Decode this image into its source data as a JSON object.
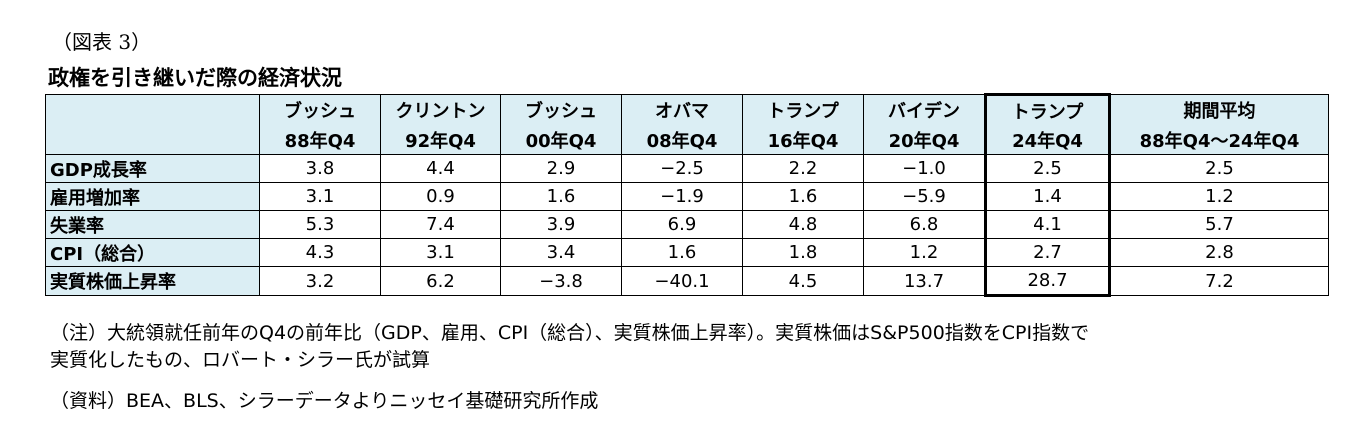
{
  "caption": "（図表 3）",
  "title": "政権を引き継いだ際の経済状況",
  "table": {
    "header": [
      [
        "ブッシュ",
        "88年Q4"
      ],
      [
        "クリントン",
        "92年Q4"
      ],
      [
        "ブッシュ",
        "00年Q4"
      ],
      [
        "オバマ",
        "08年Q4"
      ],
      [
        "トランプ",
        "16年Q4"
      ],
      [
        "バイデン",
        "20年Q4"
      ],
      [
        "トランプ",
        "24年Q4"
      ],
      [
        "期間平均",
        "88年Q4～24年Q4"
      ]
    ],
    "rows": [
      {
        "label": "GDP成長率",
        "cells": [
          "3.8",
          "4.4",
          "2.9",
          "−2.5",
          "2.2",
          "−1.0",
          "2.5",
          "2.5"
        ]
      },
      {
        "label": "雇用増加率",
        "cells": [
          "3.1",
          "0.9",
          "1.6",
          "−1.9",
          "1.6",
          "−5.9",
          "1.4",
          "1.2"
        ]
      },
      {
        "label": "失業率",
        "cells": [
          "5.3",
          "7.4",
          "3.9",
          "6.9",
          "4.8",
          "6.8",
          "4.1",
          "5.7"
        ]
      },
      {
        "label": "CPI（総合）",
        "cells": [
          "4.3",
          "3.1",
          "3.4",
          "1.6",
          "1.8",
          "1.2",
          "2.7",
          "2.8"
        ]
      },
      {
        "label": "実質株価上昇率",
        "cells": [
          "3.2",
          "6.2",
          "−3.8",
          "−40.1",
          "4.5",
          "13.7",
          "28.7",
          "7.2"
        ]
      }
    ]
  },
  "notes": [
    "（注）大統領就任前年のQ4の前年比（GDP、雇用、CPI（総合）、実質株価上昇率）。実質株価はS&P500指数をCPI指数で",
    "実質化したもの、ロバート・シラー氏が試算",
    "（資料）BEA、BLS、シラーデータよりニッセイ基礎研究所作成"
  ]
}
